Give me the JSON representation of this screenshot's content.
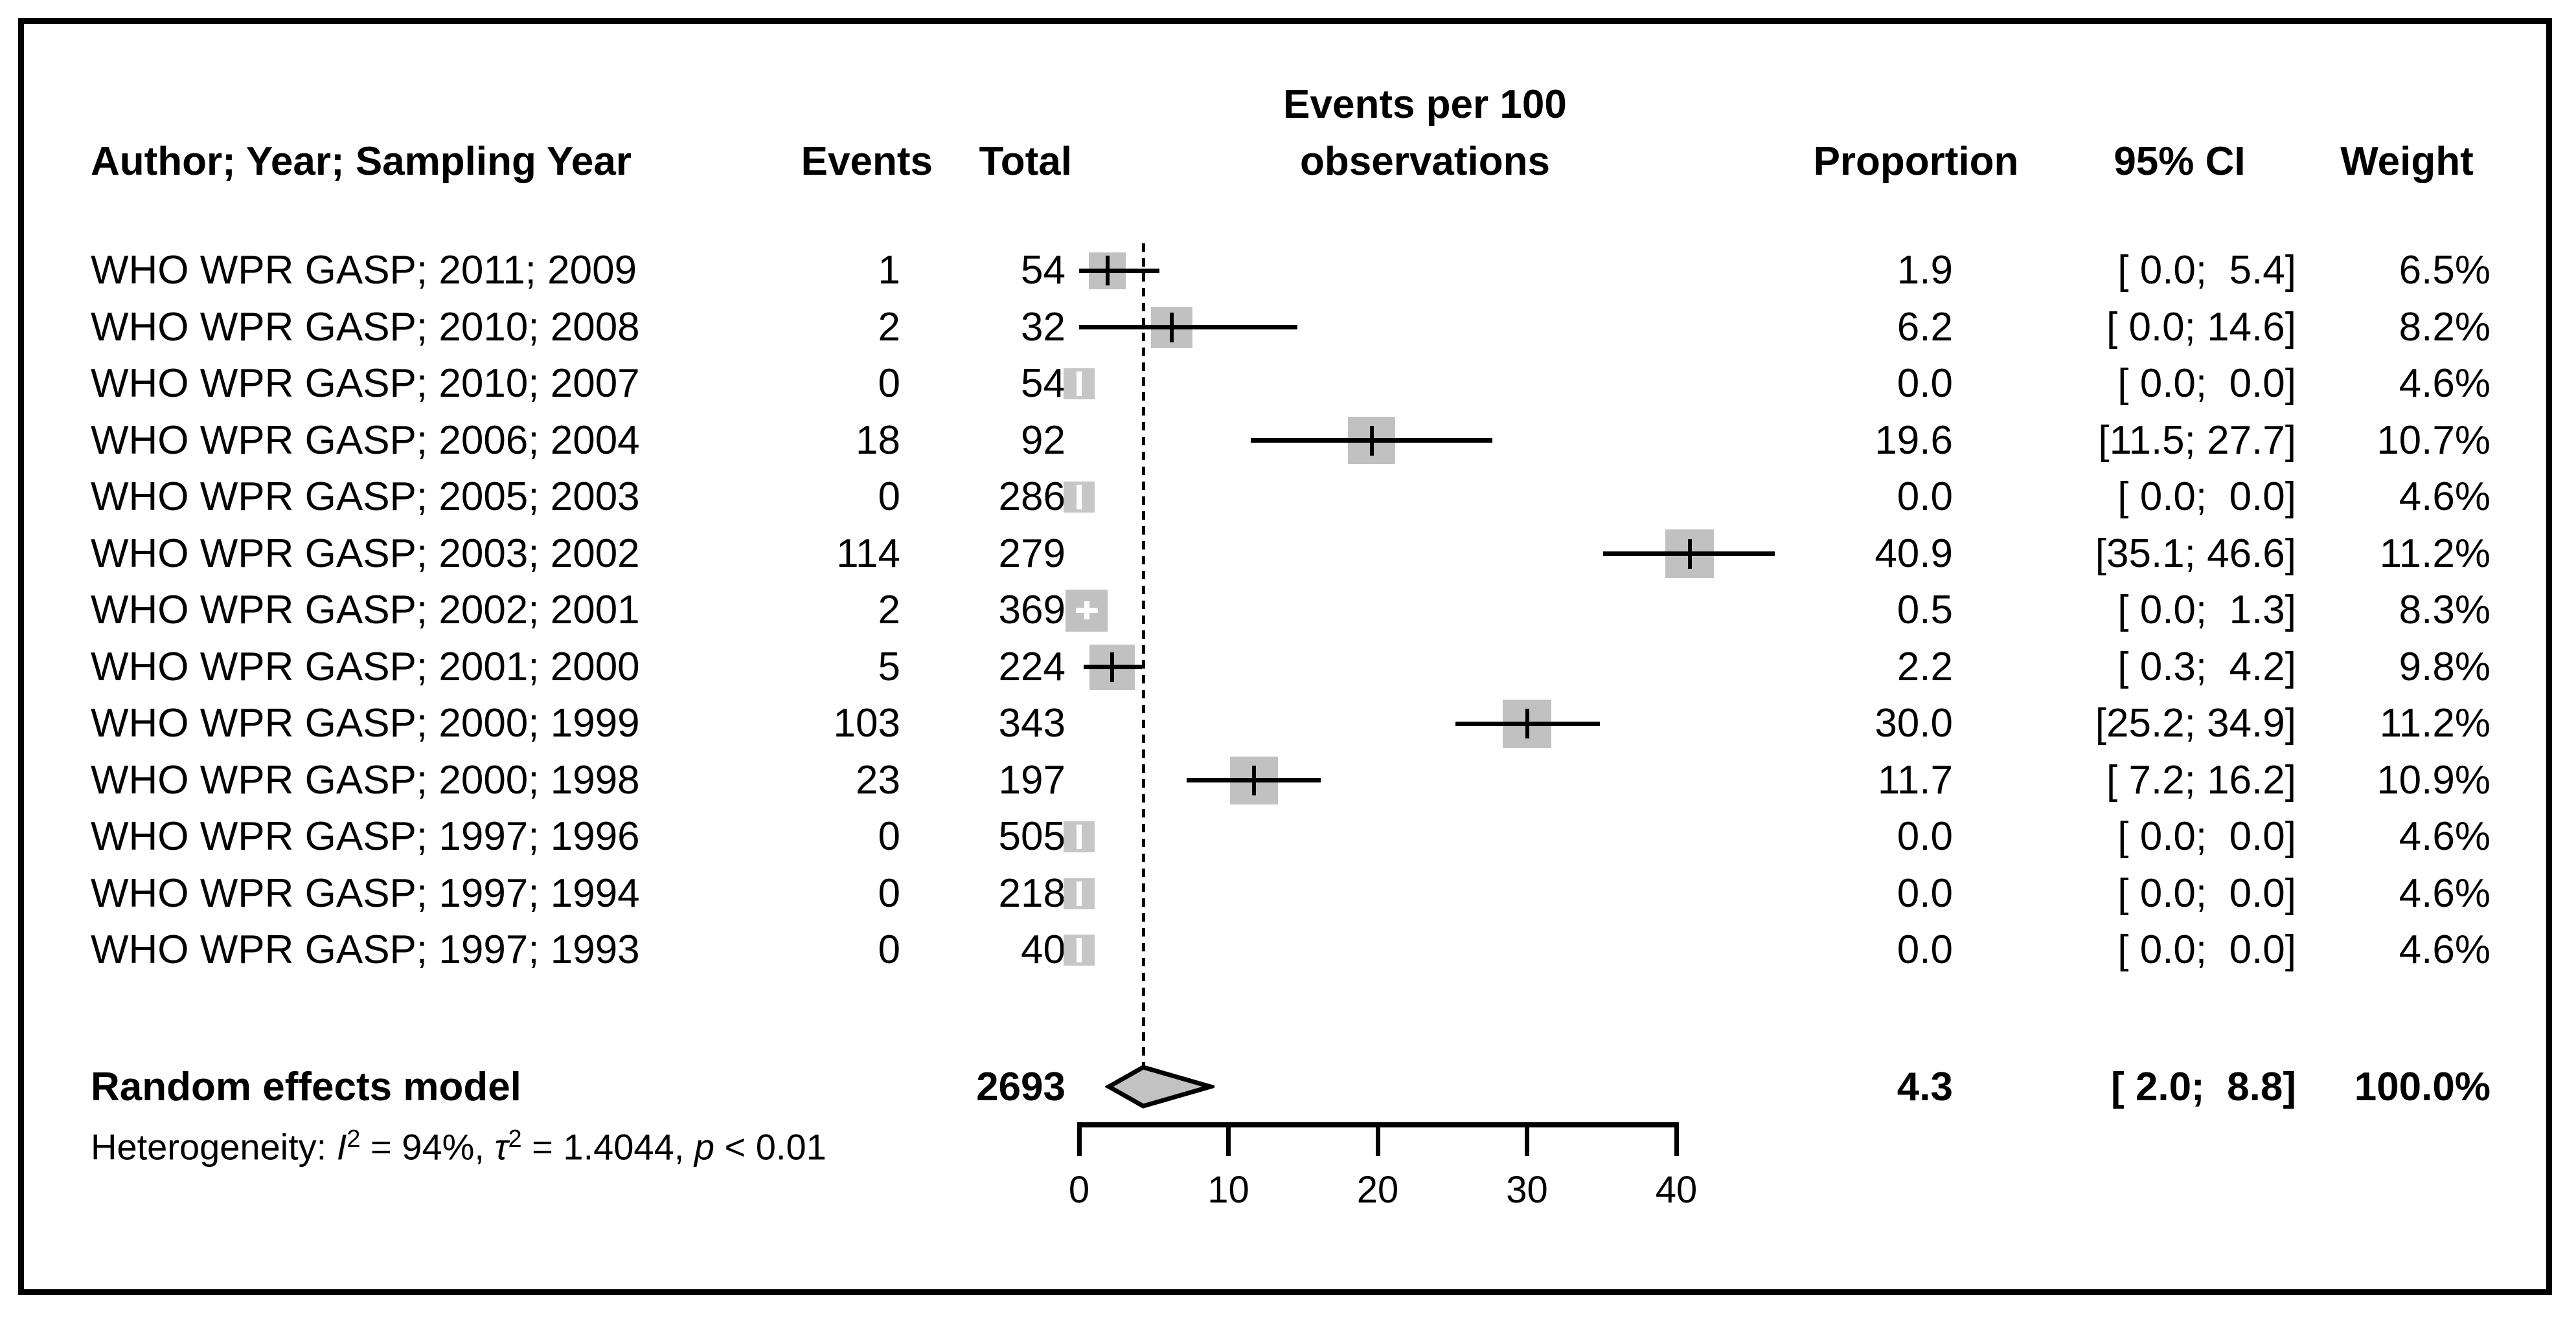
{
  "header": {
    "author": "Author; Year; Sampling Year",
    "events": "Events",
    "total": "Total",
    "plot_title_line1": "Events per 100",
    "plot_title_line2": "observations",
    "proportion": "Proportion",
    "ci": "95% CI",
    "weight": "Weight"
  },
  "summary_row": {
    "label": "Random effects model",
    "total": "2693",
    "proportion": "4.3",
    "ci_text": "[ 2.0;  8.8]",
    "weight_text": "100.0%"
  },
  "heterogeneity": {
    "prefix": "Heterogeneity: ",
    "i_symbol": "I",
    "i_sup": "2",
    "seg1": " = 94%, ",
    "tau_symbol": "τ",
    "tau_sup": "2",
    "seg2": " = 1.4044, ",
    "p_symbol": "p",
    "seg3": " < 0.01"
  },
  "colors": {
    "square": "#c1c1c1",
    "square_zero": "#c6c6c6",
    "diamond_fill": "#c2c2c2",
    "diamond_border": "#000000",
    "line": "#000000",
    "text": "#000000"
  },
  "chart_data": {
    "type": "forest",
    "title": "Events per 100 observations",
    "x_axis": {
      "min": 0,
      "max": 40,
      "ticks": [
        0,
        10,
        20,
        30,
        40
      ]
    },
    "overall_estimate": 4.3,
    "studies": [
      {
        "label": "WHO WPR GASP; 2011; 2009",
        "events": "1",
        "total": "54",
        "proportion": 1.9,
        "proportion_text": "1.9",
        "ci_low": 0.0,
        "ci_high": 5.4,
        "ci_text": "[ 0.0;  5.4]",
        "weight": 6.5,
        "weight_text": "6.5%",
        "marker": "black-plus"
      },
      {
        "label": "WHO WPR GASP; 2010; 2008",
        "events": "2",
        "total": "32",
        "proportion": 6.2,
        "proportion_text": "6.2",
        "ci_low": 0.0,
        "ci_high": 14.6,
        "ci_text": "[ 0.0; 14.6]",
        "weight": 8.2,
        "weight_text": "8.2%",
        "marker": "black-plus"
      },
      {
        "label": "WHO WPR GASP; 2010; 2007",
        "events": "0",
        "total": "54",
        "proportion": 0.0,
        "proportion_text": "0.0",
        "ci_low": 0.0,
        "ci_high": 0.0,
        "ci_text": "[ 0.0;  0.0]",
        "weight": 4.6,
        "weight_text": "4.6%",
        "marker": "white-tick"
      },
      {
        "label": "WHO WPR GASP; 2006; 2004",
        "events": "18",
        "total": "92",
        "proportion": 19.6,
        "proportion_text": "19.6",
        "ci_low": 11.5,
        "ci_high": 27.7,
        "ci_text": "[11.5; 27.7]",
        "weight": 10.7,
        "weight_text": "10.7%",
        "marker": "black-plus"
      },
      {
        "label": "WHO WPR GASP; 2005; 2003",
        "events": "0",
        "total": "286",
        "proportion": 0.0,
        "proportion_text": "0.0",
        "ci_low": 0.0,
        "ci_high": 0.0,
        "ci_text": "[ 0.0;  0.0]",
        "weight": 4.6,
        "weight_text": "4.6%",
        "marker": "white-tick"
      },
      {
        "label": "WHO WPR GASP; 2003; 2002",
        "events": "114",
        "total": "279",
        "proportion": 40.9,
        "proportion_text": "40.9",
        "ci_low": 35.1,
        "ci_high": 46.6,
        "ci_text": "[35.1; 46.6]",
        "weight": 11.2,
        "weight_text": "11.2%",
        "marker": "black-plus"
      },
      {
        "label": "WHO WPR GASP; 2002; 2001",
        "events": "2",
        "total": "369",
        "proportion": 0.5,
        "proportion_text": "0.5",
        "ci_low": 0.0,
        "ci_high": 1.3,
        "ci_text": "[ 0.0;  1.3]",
        "weight": 8.3,
        "weight_text": "8.3%",
        "marker": "white-plus"
      },
      {
        "label": "WHO WPR GASP; 2001; 2000",
        "events": "5",
        "total": "224",
        "proportion": 2.2,
        "proportion_text": "2.2",
        "ci_low": 0.3,
        "ci_high": 4.2,
        "ci_text": "[ 0.3;  4.2]",
        "weight": 9.8,
        "weight_text": "9.8%",
        "marker": "black-plus"
      },
      {
        "label": "WHO WPR GASP; 2000; 1999",
        "events": "103",
        "total": "343",
        "proportion": 30.0,
        "proportion_text": "30.0",
        "ci_low": 25.2,
        "ci_high": 34.9,
        "ci_text": "[25.2; 34.9]",
        "weight": 11.2,
        "weight_text": "11.2%",
        "marker": "black-plus"
      },
      {
        "label": "WHO WPR GASP; 2000; 1998",
        "events": "23",
        "total": "197",
        "proportion": 11.7,
        "proportion_text": "11.7",
        "ci_low": 7.2,
        "ci_high": 16.2,
        "ci_text": "[ 7.2; 16.2]",
        "weight": 10.9,
        "weight_text": "10.9%",
        "marker": "black-plus"
      },
      {
        "label": "WHO WPR GASP; 1997; 1996",
        "events": "0",
        "total": "505",
        "proportion": 0.0,
        "proportion_text": "0.0",
        "ci_low": 0.0,
        "ci_high": 0.0,
        "ci_text": "[ 0.0;  0.0]",
        "weight": 4.6,
        "weight_text": "4.6%",
        "marker": "white-tick"
      },
      {
        "label": "WHO WPR GASP; 1997; 1994",
        "events": "0",
        "total": "218",
        "proportion": 0.0,
        "proportion_text": "0.0",
        "ci_low": 0.0,
        "ci_high": 0.0,
        "ci_text": "[ 0.0;  0.0]",
        "weight": 4.6,
        "weight_text": "4.6%",
        "marker": "white-tick"
      },
      {
        "label": "WHO WPR GASP; 1997; 1993",
        "events": "0",
        "total": "40",
        "proportion": 0.0,
        "proportion_text": "0.0",
        "ci_low": 0.0,
        "ci_high": 0.0,
        "ci_text": "[ 0.0;  0.0]",
        "weight": 4.6,
        "weight_text": "4.6%",
        "marker": "white-tick"
      }
    ],
    "summary": {
      "label": "Random effects model",
      "total": 2693,
      "proportion": 4.3,
      "ci_low": 2.0,
      "ci_high": 8.8,
      "weight_text": "100.0%"
    },
    "heterogeneity_text": "Heterogeneity: I^2 = 94%, tau^2 = 1.4044, p < 0.01"
  }
}
